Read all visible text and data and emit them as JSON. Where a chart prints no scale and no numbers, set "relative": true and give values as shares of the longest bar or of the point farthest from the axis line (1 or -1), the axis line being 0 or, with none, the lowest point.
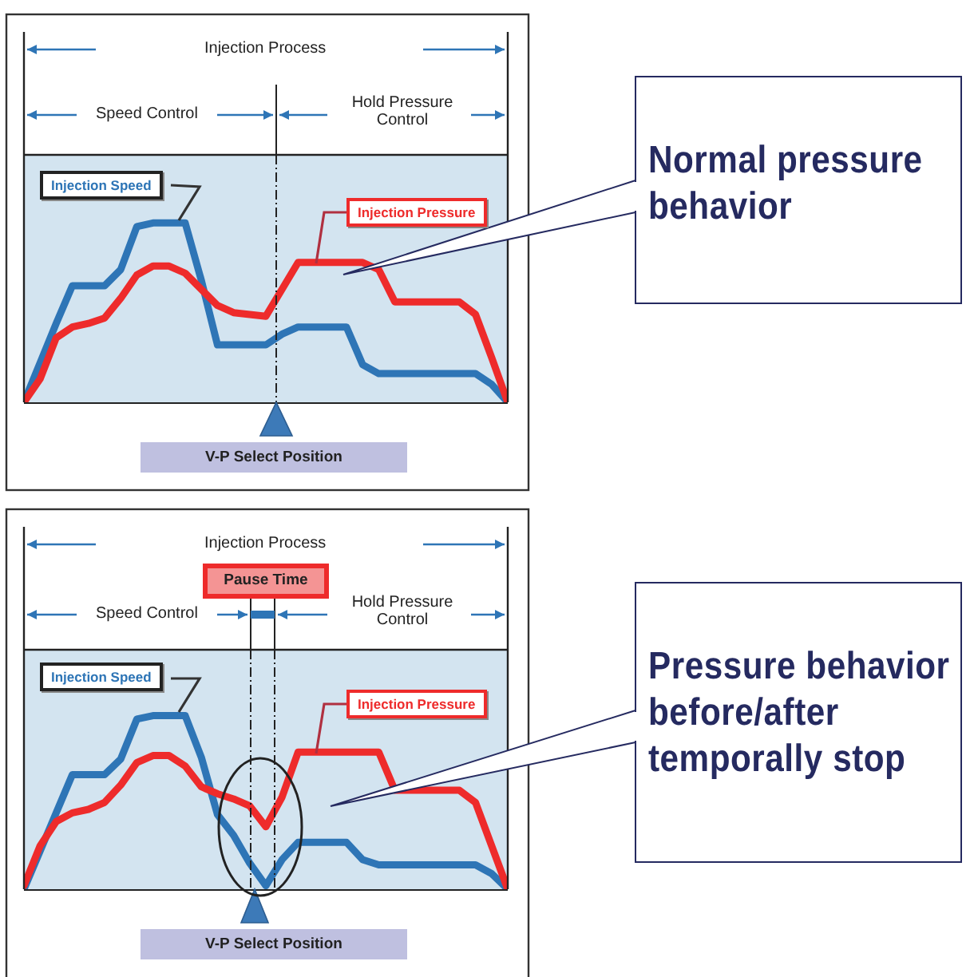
{
  "chart_data": [
    {
      "type": "line",
      "relative": true,
      "legend": false,
      "categories": [
        null,
        null,
        null,
        null,
        null,
        null,
        null,
        null,
        null,
        null,
        null,
        null,
        null,
        null,
        null,
        null,
        null,
        null,
        null,
        null,
        null,
        null,
        null,
        null,
        null,
        null,
        null,
        null,
        null,
        null,
        null
      ],
      "series": [
        {
          "name": "Injection Speed",
          "color": "#2e75b6",
          "values": [
            0,
            0.22,
            0.44,
            0.65,
            0.65,
            0.65,
            0.74,
            0.98,
            1,
            1,
            1,
            0.68,
            0.32,
            0.32,
            0.32,
            0.32,
            0.38,
            0.42,
            0.42,
            0.42,
            0.42,
            0.21,
            0.16,
            0.16,
            0.16,
            0.16,
            0.16,
            0.16,
            0.16,
            0.1,
            0
          ]
        },
        {
          "name": "Injection Pressure",
          "color": "#ee2b2b",
          "values": [
            0,
            0.13,
            0.36,
            0.42,
            0.44,
            0.47,
            0.58,
            0.71,
            0.76,
            0.76,
            0.72,
            0.63,
            0.54,
            0.5,
            0.49,
            0.48,
            0.63,
            0.78,
            0.78,
            0.78,
            0.78,
            0.78,
            0.74,
            0.56,
            0.56,
            0.56,
            0.56,
            0.56,
            0.49,
            0.25,
            0
          ]
        }
      ],
      "annotations": [
        "Injection Process",
        "Speed Control",
        "Hold Pressure Control",
        "V-P Select Position",
        "Normal pressure behavior"
      ]
    },
    {
      "type": "line",
      "relative": true,
      "legend": false,
      "categories": [
        null,
        null,
        null,
        null,
        null,
        null,
        null,
        null,
        null,
        null,
        null,
        null,
        null,
        null,
        null,
        null,
        null,
        null,
        null,
        null,
        null,
        null,
        null,
        null,
        null,
        null,
        null,
        null,
        null,
        null,
        null
      ],
      "series": [
        {
          "name": "Injection Speed",
          "color": "#2e75b6",
          "values": [
            0,
            0.22,
            0.44,
            0.66,
            0.66,
            0.66,
            0.75,
            0.98,
            1,
            1,
            1,
            0.76,
            0.43,
            0.31,
            0.15,
            0.02,
            0.17,
            0.27,
            0.27,
            0.27,
            0.27,
            0.17,
            0.14,
            0.14,
            0.14,
            0.14,
            0.14,
            0.14,
            0.14,
            0.09,
            0
          ]
        },
        {
          "name": "Injection Pressure",
          "color": "#ee2b2b",
          "values": [
            0.02,
            0.25,
            0.39,
            0.44,
            0.46,
            0.5,
            0.6,
            0.73,
            0.77,
            0.77,
            0.71,
            0.59,
            0.55,
            0.52,
            0.48,
            0.36,
            0.53,
            0.79,
            0.79,
            0.79,
            0.79,
            0.79,
            0.79,
            0.57,
            0.57,
            0.57,
            0.57,
            0.57,
            0.5,
            0.25,
            0
          ]
        }
      ],
      "annotations": [
        "Injection Process",
        "Speed Control",
        "Hold Pressure Control",
        "V-P Select Position",
        "Pressure behavior before/after temporally stop",
        "Pause Time"
      ]
    }
  ]
}
